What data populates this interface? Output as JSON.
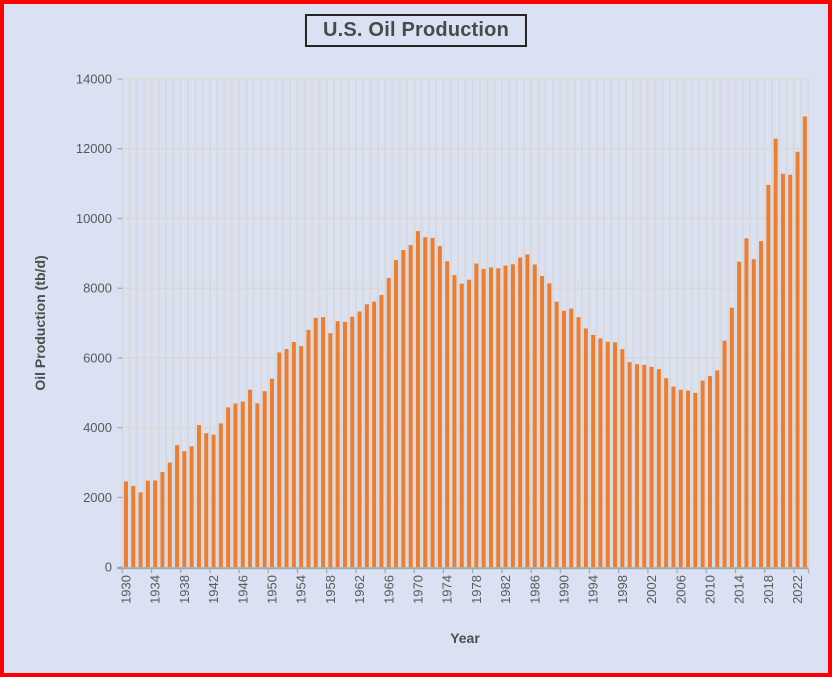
{
  "title": {
    "text": "U.S. Oil Production"
  },
  "y_axis": {
    "title": "Oil Production (tb/d)",
    "min": 0,
    "max": 14000,
    "tick_step": 2000,
    "tick_labels": [
      "0",
      "2000",
      "4000",
      "6000",
      "8000",
      "10000",
      "12000",
      "14000"
    ]
  },
  "x_axis": {
    "title": "Year",
    "label_every": 4,
    "tick_labels": [
      "1930",
      "1934",
      "1938",
      "1942",
      "1946",
      "1950",
      "1954",
      "1958",
      "1962",
      "1966",
      "1970",
      "1974",
      "1978",
      "1982",
      "1986",
      "1990",
      "1994",
      "1998",
      "2002",
      "2006",
      "2010",
      "2014",
      "2018",
      "2022"
    ]
  },
  "colors": {
    "bar": "#ED7D31",
    "background": "#D9E1F2",
    "frame_border": "#FF0000",
    "grid_vertical": "#D9D9D9",
    "grid_horizontal": "#DCD9D3",
    "axis": "#A6A6A6",
    "tick_label": "#595959",
    "title": "#4A4A4A",
    "axis_title": "#4D4D4D",
    "title_box_border": "#262626"
  },
  "chart_data": {
    "type": "bar",
    "title": "U.S. Oil Production",
    "xlabel": "Year",
    "ylabel": "Oil Production (tb/d)",
    "ylim": [
      0,
      14000
    ],
    "grid": true,
    "x": [
      1930,
      1931,
      1932,
      1933,
      1934,
      1935,
      1936,
      1937,
      1938,
      1939,
      1940,
      1941,
      1942,
      1943,
      1944,
      1945,
      1946,
      1947,
      1948,
      1949,
      1950,
      1951,
      1952,
      1953,
      1954,
      1955,
      1956,
      1957,
      1958,
      1959,
      1960,
      1961,
      1962,
      1963,
      1964,
      1965,
      1966,
      1967,
      1968,
      1969,
      1970,
      1971,
      1972,
      1973,
      1974,
      1975,
      1976,
      1977,
      1978,
      1979,
      1980,
      1981,
      1982,
      1983,
      1984,
      1985,
      1986,
      1987,
      1988,
      1989,
      1990,
      1991,
      1992,
      1993,
      1994,
      1995,
      1996,
      1997,
      1998,
      1999,
      2000,
      2001,
      2002,
      2003,
      2004,
      2005,
      2006,
      2007,
      2008,
      2009,
      2010,
      2011,
      2012,
      2013,
      2014,
      2015,
      2016,
      2017,
      2018,
      2019,
      2020,
      2021,
      2022,
      2023
    ],
    "values": [
      2460,
      2332,
      2145,
      2481,
      2488,
      2730,
      3001,
      3500,
      3327,
      3466,
      4075,
      3842,
      3799,
      4125,
      4584,
      4695,
      4751,
      5088,
      4700,
      5046,
      5407,
      6158,
      6256,
      6458,
      6342,
      6807,
      7151,
      7170,
      6710,
      7054,
      7035,
      7183,
      7332,
      7542,
      7614,
      7804,
      8295,
      8810,
      9096,
      9238,
      9637,
      9463,
      9441,
      9208,
      8774,
      8375,
      8132,
      8245,
      8707,
      8552,
      8597,
      8572,
      8649,
      8688,
      8879,
      8971,
      8680,
      8349,
      8140,
      7613,
      7355,
      7417,
      7171,
      6847,
      6662,
      6560,
      6465,
      6452,
      6252,
      5881,
      5822,
      5801,
      5746,
      5681,
      5419,
      5178,
      5088,
      5064,
      5000,
      5353,
      5482,
      5645,
      6497,
      7441,
      8759,
      9431,
      8831,
      9352,
      10964,
      12289,
      11283,
      11254,
      11911,
      12927
    ]
  }
}
